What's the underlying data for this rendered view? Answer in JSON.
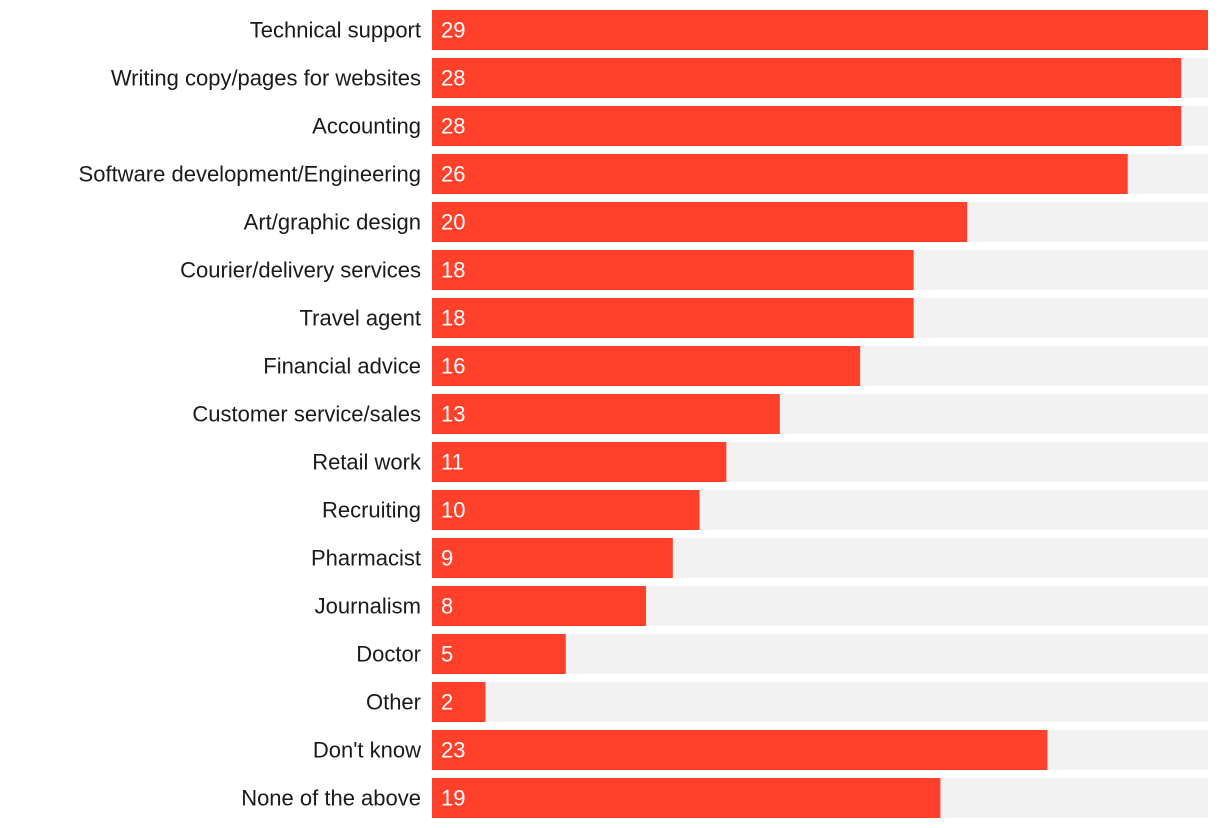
{
  "chart_data": {
    "type": "bar",
    "orientation": "horizontal",
    "title": "",
    "xlabel": "",
    "ylabel": "",
    "xlim": [
      0,
      29
    ],
    "grid": false,
    "legend": "none",
    "colors": {
      "bar": "#ff412c",
      "track": "#f2f2f2",
      "label": "#1a1a1a",
      "value_text": "#ffffff"
    },
    "categories": [
      "Technical support",
      "Writing copy/pages for websites",
      "Accounting",
      "Software development/Engineering",
      "Art/graphic design",
      "Courier/delivery services",
      "Travel agent",
      "Financial advice",
      "Customer service/sales",
      "Retail work",
      "Recruiting",
      "Pharmacist",
      "Journalism",
      "Doctor",
      "Other",
      "Don't know",
      "None of the above"
    ],
    "values": [
      29,
      28,
      28,
      26,
      20,
      18,
      18,
      16,
      13,
      11,
      10,
      9,
      8,
      5,
      2,
      23,
      19
    ]
  }
}
